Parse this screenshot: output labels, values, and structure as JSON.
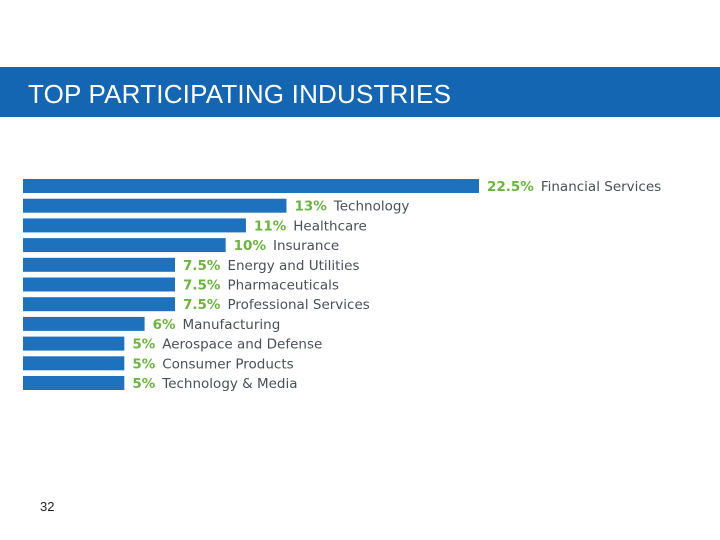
{
  "slide": {
    "title": "TOP PARTICIPATING INDUSTRIES",
    "page_number": "32"
  },
  "colors": {
    "header_bar": "#1466b3",
    "bar": "#1e72bd",
    "percent_label": "#6cb33f",
    "category_label": "#4a4f57"
  },
  "chart_data": {
    "type": "bar",
    "orientation": "horizontal",
    "title": "",
    "xlabel": "",
    "ylabel": "",
    "xlim": [
      0,
      22.5
    ],
    "grid": false,
    "value_labels": [
      "22.5%",
      "13%",
      "11%",
      "10%",
      "7.5%",
      "7.5%",
      "7.5%",
      "6%",
      "5%",
      "5%",
      "5%"
    ],
    "categories": [
      "Financial Services",
      "Technology",
      "Healthcare",
      "Insurance",
      "Energy and Utilities",
      "Pharmaceuticals",
      "Professional Services",
      "Manufacturing",
      "Aerospace and Defense",
      "Consumer Products",
      "Technology & Media"
    ],
    "values": [
      22.5,
      13,
      11,
      10,
      7.5,
      7.5,
      7.5,
      6,
      5,
      5,
      5
    ]
  }
}
